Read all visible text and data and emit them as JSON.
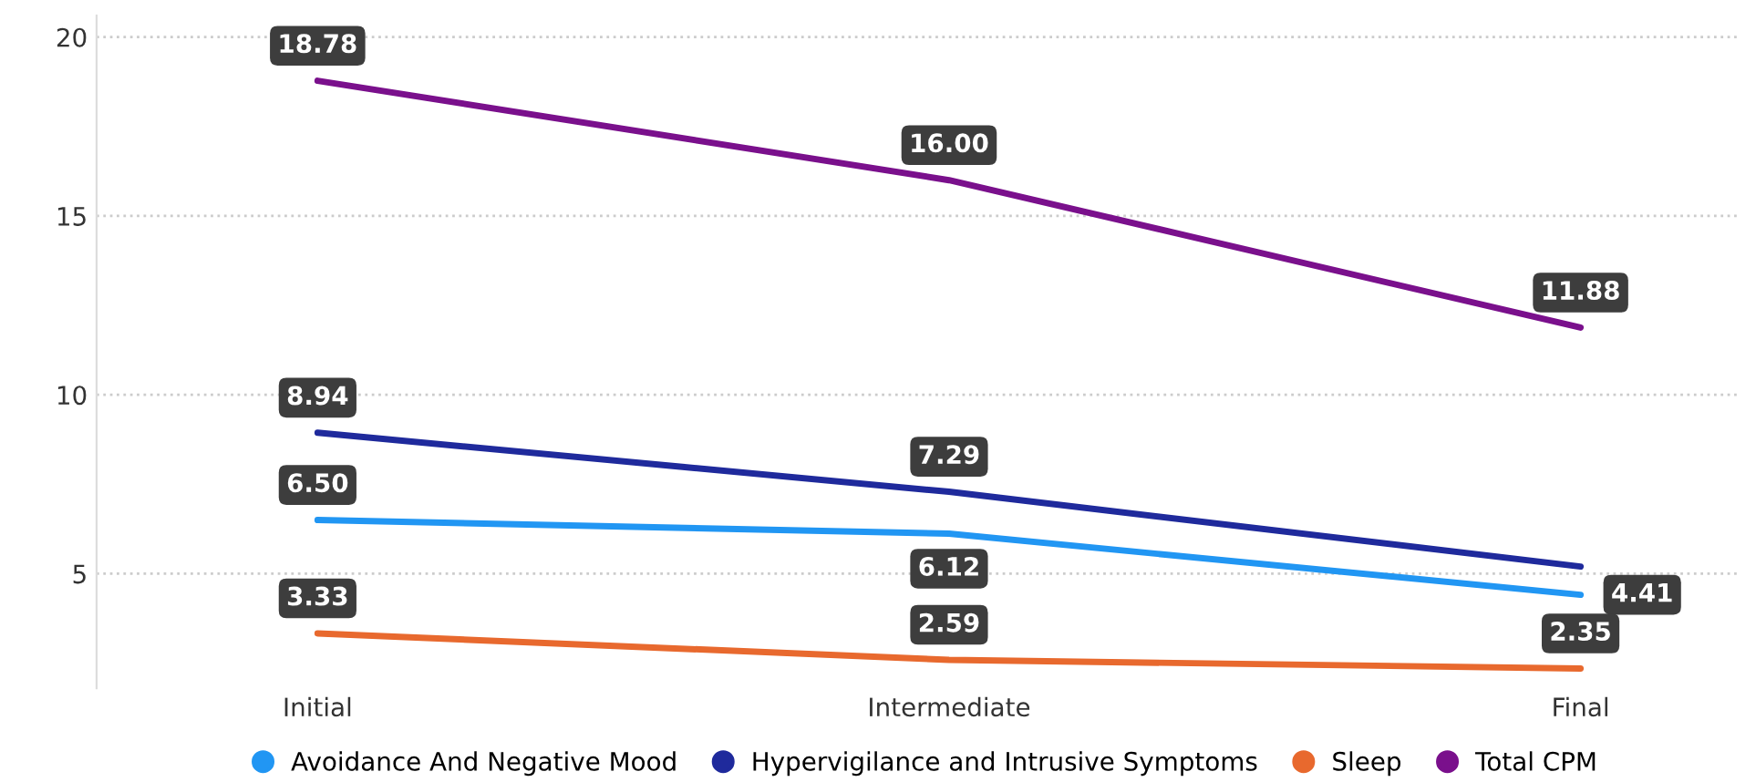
{
  "chart_data": {
    "type": "line",
    "categories": [
      "Initial",
      "Intermediate",
      "Final"
    ],
    "series": [
      {
        "name": "Avoidance And Negative Mood",
        "color": "#2196f3",
        "values": [
          6.5,
          6.12,
          4.41
        ],
        "value_labels": [
          "6.50",
          "6.12",
          "4.41"
        ]
      },
      {
        "name": "Hypervigilance and Intrusive Symptoms",
        "color": "#1f2a9c",
        "values": [
          8.94,
          7.29,
          5.2
        ],
        "value_labels": [
          "8.94",
          "7.29",
          null
        ]
      },
      {
        "name": "Sleep",
        "color": "#e8692e",
        "values": [
          3.33,
          2.59,
          2.35
        ],
        "value_labels": [
          "3.33",
          "2.59",
          "2.35"
        ]
      },
      {
        "name": "Total CPM",
        "color": "#7a108c",
        "values": [
          18.78,
          16.0,
          11.88
        ],
        "value_labels": [
          "18.78",
          "16.00",
          "11.88"
        ]
      }
    ],
    "ylim": [
      1.8,
      20.6
    ],
    "yticks": [
      5,
      10,
      15,
      20
    ],
    "grid": "y",
    "legend": "bottom",
    "line_style": "solid"
  }
}
